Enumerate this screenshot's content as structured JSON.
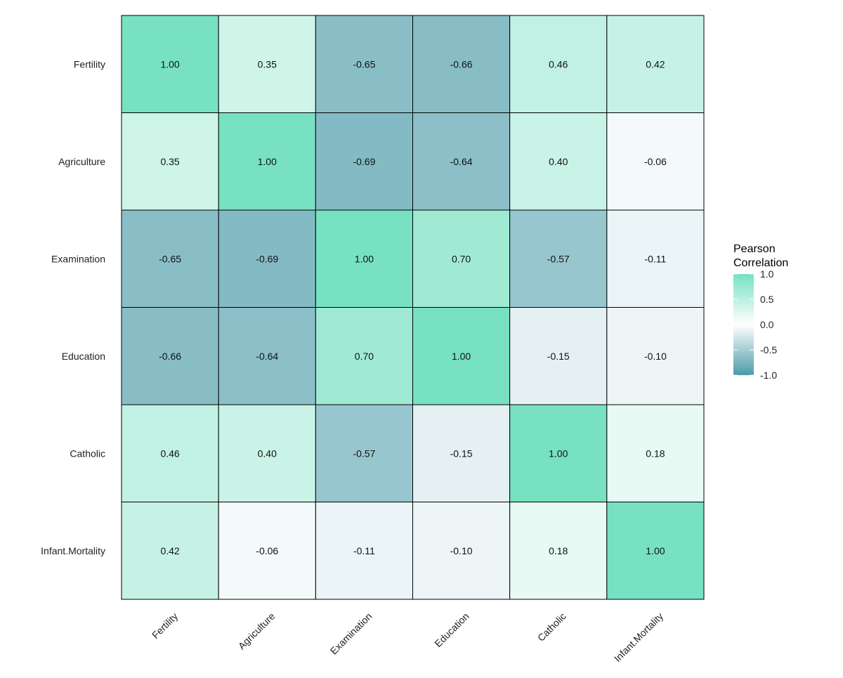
{
  "chart_data": {
    "type": "heatmap",
    "title": "",
    "xlabel": "",
    "ylabel": "",
    "variables": [
      "Fertility",
      "Agriculture",
      "Examination",
      "Education",
      "Catholic",
      "Infant.Mortality"
    ],
    "values": [
      [
        1.0,
        0.35,
        -0.65,
        -0.66,
        0.46,
        0.42
      ],
      [
        0.35,
        1.0,
        -0.69,
        -0.64,
        0.4,
        -0.06
      ],
      [
        -0.65,
        -0.69,
        1.0,
        0.7,
        -0.57,
        -0.11
      ],
      [
        -0.66,
        -0.64,
        0.7,
        1.0,
        -0.15,
        -0.1
      ],
      [
        0.46,
        0.4,
        -0.57,
        -0.15,
        1.0,
        0.18
      ],
      [
        0.42,
        -0.06,
        -0.11,
        -0.1,
        0.18,
        1.0
      ]
    ],
    "legend": {
      "title_lines": [
        "Pearson",
        "Correlation"
      ],
      "ticks": [
        "1.0",
        "0.5",
        "0.0",
        "-0.5",
        "-1.0"
      ],
      "tick_values": [
        1.0,
        0.5,
        0.0,
        -0.5,
        -1.0
      ],
      "range": [
        -1,
        1
      ],
      "placement": "right"
    },
    "colors": {
      "high": "#77e1c1",
      "mid": "#ffffff",
      "low": "#4b9ba9"
    }
  }
}
